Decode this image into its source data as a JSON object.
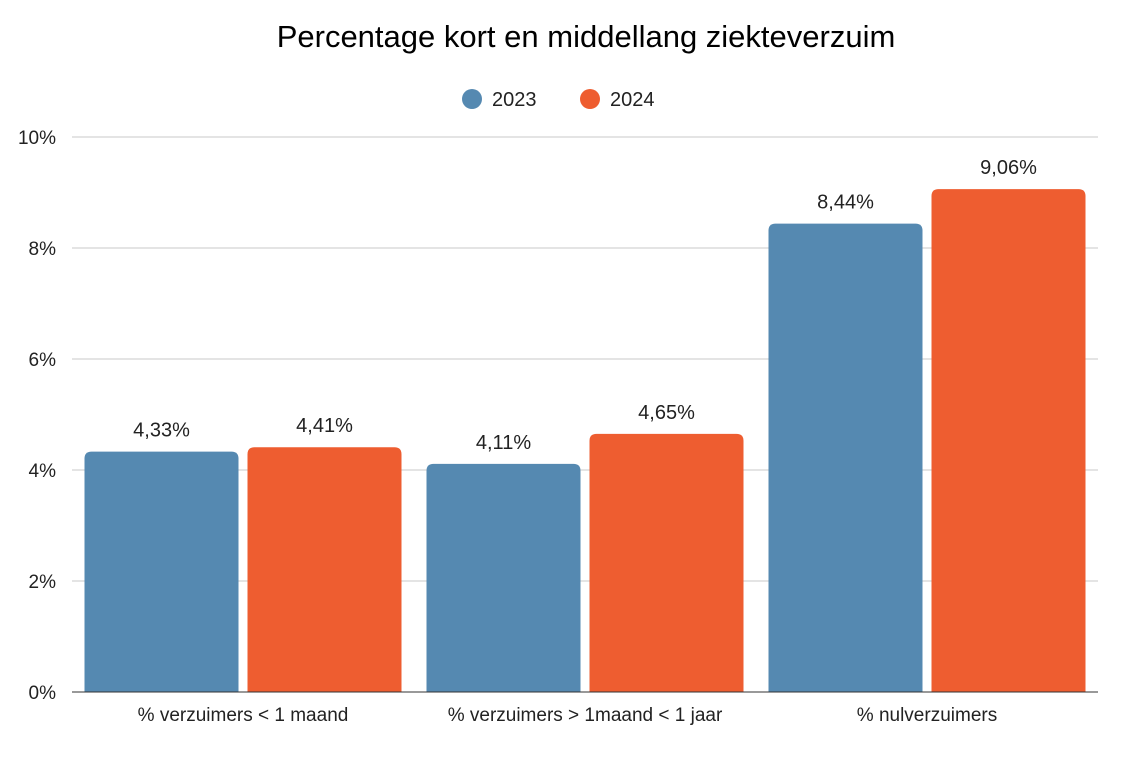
{
  "chart_data": {
    "type": "bar",
    "title": "Percentage kort en middellang ziekteverzuim",
    "xlabel": "",
    "ylabel": "",
    "categories": [
      "% verzuimers < 1 maand",
      "% verzuimers > 1maand < 1 jaar",
      "% nulverzuimers"
    ],
    "series": [
      {
        "name": "2023",
        "color": "#5589b1",
        "values": [
          4.33,
          4.11,
          8.44
        ],
        "labels": [
          "4,33%",
          "4,11%",
          "8,44%"
        ]
      },
      {
        "name": "2024",
        "color": "#ee5d30",
        "values": [
          4.41,
          4.65,
          9.06
        ],
        "labels": [
          "4,41%",
          "4,65%",
          "9,06%"
        ]
      }
    ],
    "ylim": [
      0,
      10
    ],
    "yticks": [
      0,
      2,
      4,
      6,
      8,
      10
    ],
    "ytick_labels": [
      "0%",
      "2%",
      "4%",
      "6%",
      "8%",
      "10%"
    ],
    "grid": true,
    "legend_position": "top-center"
  }
}
